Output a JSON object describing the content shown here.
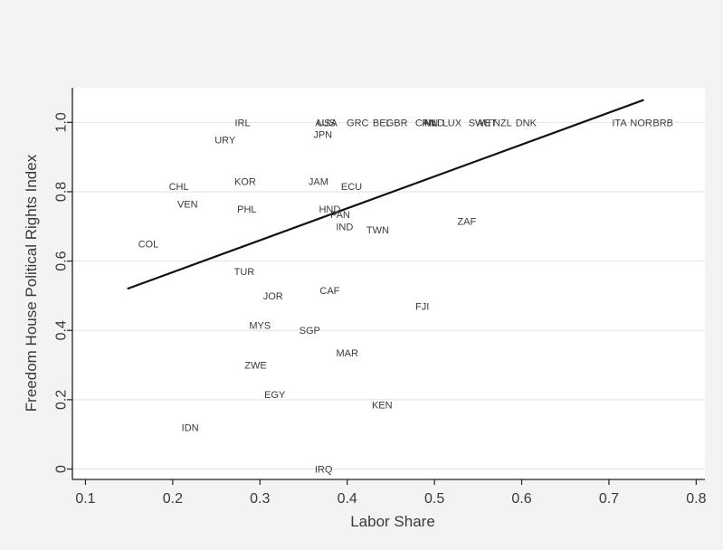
{
  "colors": {
    "outer_background": "#f3f3f3",
    "plot_background": "#ffffff",
    "gridline": "#e2e2e2",
    "text": "#3a3a3a",
    "fit_line": "#111111"
  },
  "chart_data": {
    "type": "scatter",
    "title": "",
    "xlabel": "Labor Share",
    "ylabel": "Freedom House Political Rights Index",
    "xlim": [
      0.085,
      0.81
    ],
    "ylim": [
      -0.03,
      1.1
    ],
    "xticks": [
      "0.1",
      "0.2",
      "0.3",
      "0.4",
      "0.5",
      "0.6",
      "0.7",
      "0.8"
    ],
    "xtick_values": [
      0.1,
      0.2,
      0.3,
      0.4,
      0.5,
      0.6,
      0.7,
      0.8
    ],
    "yticks": [
      "0",
      "0.2",
      "0.4",
      "0.6",
      "0.8",
      "1.0"
    ],
    "ytick_values": [
      0,
      0.2,
      0.4,
      0.6,
      0.8,
      1.0
    ],
    "grid": "horizontal",
    "fit_line": {
      "x": [
        0.148,
        0.74
      ],
      "y": [
        0.52,
        1.065
      ]
    },
    "points": [
      {
        "label": "IRL",
        "x": 0.28,
        "y": 1.0
      },
      {
        "label": "URY",
        "x": 0.26,
        "y": 0.95
      },
      {
        "label": "AUS",
        "x": 0.375,
        "y": 1.0
      },
      {
        "label": "USA",
        "x": 0.377,
        "y": 1.0
      },
      {
        "label": "JPN",
        "x": 0.372,
        "y": 0.965
      },
      {
        "label": "GRC",
        "x": 0.412,
        "y": 1.0
      },
      {
        "label": "BEL",
        "x": 0.44,
        "y": 1.0
      },
      {
        "label": "GBR",
        "x": 0.457,
        "y": 1.0
      },
      {
        "label": "CAN",
        "x": 0.49,
        "y": 1.0
      },
      {
        "label": "FIN",
        "x": 0.495,
        "y": 1.0
      },
      {
        "label": "NLD",
        "x": 0.5,
        "y": 1.0
      },
      {
        "label": "LUX",
        "x": 0.52,
        "y": 1.0
      },
      {
        "label": "SWE",
        "x": 0.552,
        "y": 1.0
      },
      {
        "label": "AUT",
        "x": 0.56,
        "y": 1.0
      },
      {
        "label": "NZL",
        "x": 0.578,
        "y": 1.0
      },
      {
        "label": "DNK",
        "x": 0.605,
        "y": 1.0
      },
      {
        "label": "ITA",
        "x": 0.712,
        "y": 1.0
      },
      {
        "label": "NOR",
        "x": 0.737,
        "y": 1.0
      },
      {
        "label": "BRB",
        "x": 0.762,
        "y": 1.0
      },
      {
        "label": "CHL",
        "x": 0.207,
        "y": 0.815
      },
      {
        "label": "KOR",
        "x": 0.283,
        "y": 0.83
      },
      {
        "label": "JAM",
        "x": 0.367,
        "y": 0.83
      },
      {
        "label": "ECU",
        "x": 0.405,
        "y": 0.815
      },
      {
        "label": "VEN",
        "x": 0.217,
        "y": 0.765
      },
      {
        "label": "PHL",
        "x": 0.285,
        "y": 0.75
      },
      {
        "label": "HND",
        "x": 0.38,
        "y": 0.75
      },
      {
        "label": "PAN",
        "x": 0.392,
        "y": 0.735
      },
      {
        "label": "IND",
        "x": 0.397,
        "y": 0.7
      },
      {
        "label": "TWN",
        "x": 0.435,
        "y": 0.69
      },
      {
        "label": "ZAF",
        "x": 0.537,
        "y": 0.715
      },
      {
        "label": "COL",
        "x": 0.172,
        "y": 0.65
      },
      {
        "label": "TUR",
        "x": 0.282,
        "y": 0.57
      },
      {
        "label": "CAF",
        "x": 0.38,
        "y": 0.515
      },
      {
        "label": "JOR",
        "x": 0.315,
        "y": 0.5
      },
      {
        "label": "FJI",
        "x": 0.486,
        "y": 0.47
      },
      {
        "label": "MYS",
        "x": 0.3,
        "y": 0.415
      },
      {
        "label": "SGP",
        "x": 0.357,
        "y": 0.4
      },
      {
        "label": "MAR",
        "x": 0.4,
        "y": 0.335
      },
      {
        "label": "ZWE",
        "x": 0.295,
        "y": 0.3
      },
      {
        "label": "EGY",
        "x": 0.317,
        "y": 0.215
      },
      {
        "label": "KEN",
        "x": 0.44,
        "y": 0.185
      },
      {
        "label": "IDN",
        "x": 0.22,
        "y": 0.12
      },
      {
        "label": "IRQ",
        "x": 0.373,
        "y": 0.0
      }
    ]
  }
}
